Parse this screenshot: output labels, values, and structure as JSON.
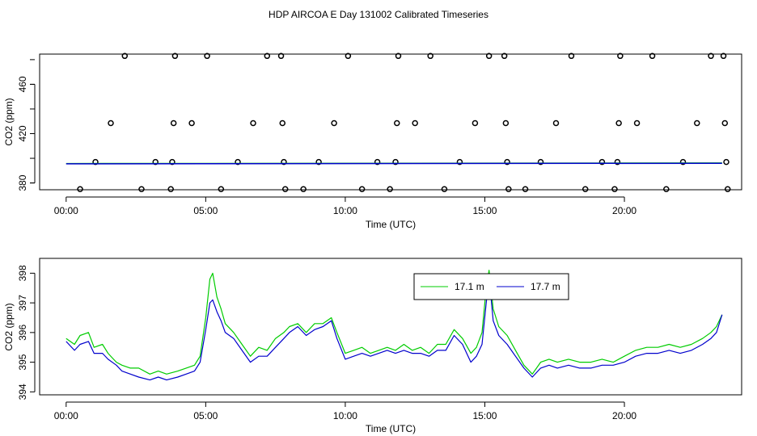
{
  "title": "HDP AIRCOA E  Day 131002  Calibrated Timeseries",
  "colors": {
    "series1": "#00cc00",
    "series2": "#0000cc",
    "axis": "#000000"
  },
  "chart_data": [
    {
      "type": "scatter",
      "xlabel": "Time (UTC)",
      "ylabel": "CO2 (ppm)",
      "xlim": [
        -0.95,
        24.2
      ],
      "ylim": [
        374.5,
        484.5
      ],
      "x_ticks": [
        0,
        5,
        10,
        15,
        20
      ],
      "x_tick_labels": [
        "00:00",
        "05:00",
        "10:00",
        "15:00",
        "20:00"
      ],
      "y_ticks": [
        380,
        420,
        460
      ],
      "y_tick_labels": [
        "380",
        "420",
        "460"
      ],
      "grid": false,
      "legend": "none",
      "series": [
        {
          "marker": "open-circle",
          "points": [
            [
              0.5,
              375
            ],
            [
              1.05,
              397
            ],
            [
              1.6,
              428.5
            ],
            [
              2.1,
              483
            ],
            [
              2.7,
              375
            ],
            [
              3.2,
              397
            ],
            [
              3.75,
              375
            ],
            [
              3.8,
              397
            ],
            [
              3.85,
              428.5
            ],
            [
              3.9,
              483
            ],
            [
              4.5,
              428.5
            ],
            [
              5.05,
              483
            ],
            [
              5.55,
              375
            ],
            [
              6.15,
              397
            ],
            [
              6.7,
              428.5
            ],
            [
              7.2,
              483
            ],
            [
              7.7,
              483
            ],
            [
              7.75,
              428.5
            ],
            [
              7.8,
              397
            ],
            [
              7.85,
              375
            ],
            [
              8.5,
              375
            ],
            [
              9.05,
              397
            ],
            [
              9.6,
              428.5
            ],
            [
              10.1,
              483
            ],
            [
              10.6,
              375
            ],
            [
              11.15,
              397
            ],
            [
              11.6,
              375
            ],
            [
              11.8,
              397
            ],
            [
              11.85,
              428.5
            ],
            [
              11.9,
              483
            ],
            [
              12.5,
              428.5
            ],
            [
              13.05,
              483
            ],
            [
              13.55,
              375
            ],
            [
              14.1,
              397
            ],
            [
              14.65,
              428.5
            ],
            [
              15.15,
              483
            ],
            [
              15.7,
              483
            ],
            [
              15.75,
              428.5
            ],
            [
              15.8,
              397
            ],
            [
              15.85,
              375
            ],
            [
              16.45,
              375
            ],
            [
              17.0,
              397
            ],
            [
              17.55,
              428.5
            ],
            [
              18.1,
              483
            ],
            [
              18.6,
              375
            ],
            [
              19.2,
              397
            ],
            [
              19.65,
              375
            ],
            [
              19.75,
              397
            ],
            [
              19.8,
              428.5
            ],
            [
              19.85,
              483
            ],
            [
              20.45,
              428.5
            ],
            [
              21.0,
              483
            ],
            [
              21.5,
              375
            ],
            [
              22.1,
              397
            ],
            [
              22.6,
              428.5
            ],
            [
              23.1,
              483
            ],
            [
              23.55,
              483
            ],
            [
              23.6,
              428.5
            ],
            [
              23.65,
              397
            ],
            [
              23.7,
              375
            ]
          ]
        },
        {
          "name": "17.1 m",
          "style": "line",
          "x": [
            0,
            23.5
          ],
          "values": [
            395.7,
            396.2
          ]
        },
        {
          "name": "17.7 m",
          "style": "line",
          "x": [
            0,
            23.5
          ],
          "values": [
            395.5,
            396.0
          ]
        }
      ]
    },
    {
      "type": "line",
      "xlabel": "Time (UTC)",
      "ylabel": "CO2 (ppm)",
      "xlim": [
        -0.95,
        24.2
      ],
      "ylim": [
        393.9,
        398.5
      ],
      "x_ticks": [
        0,
        5,
        10,
        15,
        20
      ],
      "x_tick_labels": [
        "00:00",
        "05:00",
        "10:00",
        "15:00",
        "20:00"
      ],
      "y_ticks": [
        394,
        395,
        396,
        397,
        398
      ],
      "y_tick_labels": [
        "394",
        "395",
        "396",
        "397",
        "398"
      ],
      "grid": false,
      "legend": "top-center",
      "series": [
        {
          "name": "17.1 m",
          "color": "#00cc00",
          "x": [
            0,
            0.3,
            0.5,
            0.8,
            1.0,
            1.3,
            1.5,
            1.8,
            2.0,
            2.3,
            2.6,
            3.0,
            3.3,
            3.6,
            4.0,
            4.3,
            4.6,
            4.8,
            5.0,
            5.15,
            5.25,
            5.4,
            5.55,
            5.7,
            6.0,
            6.3,
            6.6,
            6.9,
            7.2,
            7.5,
            7.8,
            8.0,
            8.3,
            8.6,
            8.9,
            9.2,
            9.5,
            9.7,
            10.0,
            10.3,
            10.6,
            10.9,
            11.2,
            11.5,
            11.8,
            12.1,
            12.4,
            12.7,
            13.0,
            13.3,
            13.6,
            13.9,
            14.2,
            14.5,
            14.7,
            14.9,
            15.05,
            15.15,
            15.3,
            15.5,
            15.8,
            16.1,
            16.4,
            16.7,
            17.0,
            17.3,
            17.6,
            18.0,
            18.4,
            18.8,
            19.2,
            19.6,
            20.0,
            20.4,
            20.8,
            21.2,
            21.6,
            22.0,
            22.4,
            22.8,
            23.1,
            23.3,
            23.5
          ],
          "values": [
            395.8,
            395.6,
            395.9,
            396.0,
            395.5,
            395.6,
            395.3,
            395.0,
            394.9,
            394.8,
            394.8,
            394.6,
            394.7,
            394.6,
            394.7,
            394.8,
            394.9,
            395.2,
            396.5,
            397.8,
            398.0,
            397.2,
            396.8,
            396.3,
            396.0,
            395.6,
            395.2,
            395.5,
            395.4,
            395.8,
            396.0,
            396.2,
            396.3,
            396.0,
            396.3,
            396.3,
            396.5,
            396.0,
            395.3,
            395.4,
            395.5,
            395.3,
            395.4,
            395.5,
            395.4,
            395.6,
            395.4,
            395.5,
            395.3,
            395.6,
            395.6,
            396.1,
            395.8,
            395.3,
            395.5,
            396.0,
            397.5,
            398.1,
            396.8,
            396.2,
            395.9,
            395.4,
            394.9,
            394.6,
            395.0,
            395.1,
            395.0,
            395.1,
            395.0,
            395.0,
            395.1,
            395.0,
            395.2,
            395.4,
            395.5,
            395.5,
            395.6,
            395.5,
            395.6,
            395.8,
            396.0,
            396.2,
            396.6
          ]
        },
        {
          "name": "17.7 m",
          "color": "#0000cc",
          "x": [
            0,
            0.3,
            0.5,
            0.8,
            1.0,
            1.3,
            1.5,
            1.8,
            2.0,
            2.3,
            2.6,
            3.0,
            3.3,
            3.6,
            4.0,
            4.3,
            4.6,
            4.8,
            5.0,
            5.15,
            5.25,
            5.4,
            5.55,
            5.7,
            6.0,
            6.3,
            6.6,
            6.9,
            7.2,
            7.5,
            7.8,
            8.0,
            8.3,
            8.6,
            8.9,
            9.2,
            9.5,
            9.7,
            10.0,
            10.3,
            10.6,
            10.9,
            11.2,
            11.5,
            11.8,
            12.1,
            12.4,
            12.7,
            13.0,
            13.3,
            13.6,
            13.9,
            14.2,
            14.5,
            14.7,
            14.9,
            15.05,
            15.15,
            15.3,
            15.5,
            15.8,
            16.1,
            16.4,
            16.7,
            17.0,
            17.3,
            17.6,
            18.0,
            18.4,
            18.8,
            19.2,
            19.6,
            20.0,
            20.4,
            20.8,
            21.2,
            21.6,
            22.0,
            22.4,
            22.8,
            23.1,
            23.3,
            23.5
          ],
          "values": [
            395.7,
            395.4,
            395.6,
            395.7,
            395.3,
            395.3,
            395.1,
            394.9,
            394.7,
            394.6,
            394.5,
            394.4,
            394.5,
            394.4,
            394.5,
            394.6,
            394.7,
            395.0,
            396.1,
            397.0,
            397.1,
            396.7,
            396.4,
            396.0,
            395.8,
            395.4,
            395.0,
            395.2,
            395.2,
            395.5,
            395.8,
            396.0,
            396.2,
            395.9,
            396.1,
            396.2,
            396.4,
            395.8,
            395.1,
            395.2,
            395.3,
            395.2,
            395.3,
            395.4,
            395.3,
            395.4,
            395.3,
            395.3,
            395.2,
            395.4,
            395.4,
            395.9,
            395.6,
            395.0,
            395.2,
            395.6,
            397.0,
            397.9,
            396.4,
            395.9,
            395.6,
            395.2,
            394.8,
            394.5,
            394.8,
            394.9,
            394.8,
            394.9,
            394.8,
            394.8,
            394.9,
            394.9,
            395.0,
            395.2,
            395.3,
            395.3,
            395.4,
            395.3,
            395.4,
            395.6,
            395.8,
            396.0,
            396.6
          ]
        }
      ]
    }
  ]
}
